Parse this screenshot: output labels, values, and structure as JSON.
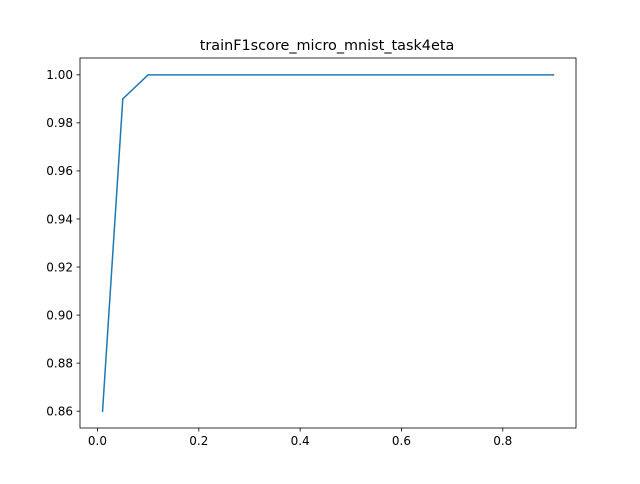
{
  "chart_data": {
    "type": "line",
    "title": "trainF1score_micro_mnist_task4eta",
    "xlabel": "",
    "ylabel": "",
    "xlim": [
      -0.0345,
      0.9445
    ],
    "ylim": [
      0.853,
      1.007
    ],
    "xticks": [
      0.0,
      0.2,
      0.4,
      0.6,
      0.8
    ],
    "xtick_labels": [
      "0.0",
      "0.2",
      "0.4",
      "0.6",
      "0.8"
    ],
    "yticks": [
      0.86,
      0.88,
      0.9,
      0.92,
      0.94,
      0.96,
      0.98,
      1.0
    ],
    "ytick_labels": [
      "0.86",
      "0.88",
      "0.90",
      "0.92",
      "0.94",
      "0.96",
      "0.98",
      "1.00"
    ],
    "grid": false,
    "series": [
      {
        "color": "#1f77b4",
        "x": [
          0.01,
          0.05,
          0.1,
          0.2,
          0.3,
          0.4,
          0.5,
          0.6,
          0.7,
          0.8,
          0.9
        ],
        "y": [
          0.86,
          0.99,
          1.0,
          1.0,
          1.0,
          1.0,
          1.0,
          1.0,
          1.0,
          1.0,
          1.0
        ]
      }
    ]
  }
}
